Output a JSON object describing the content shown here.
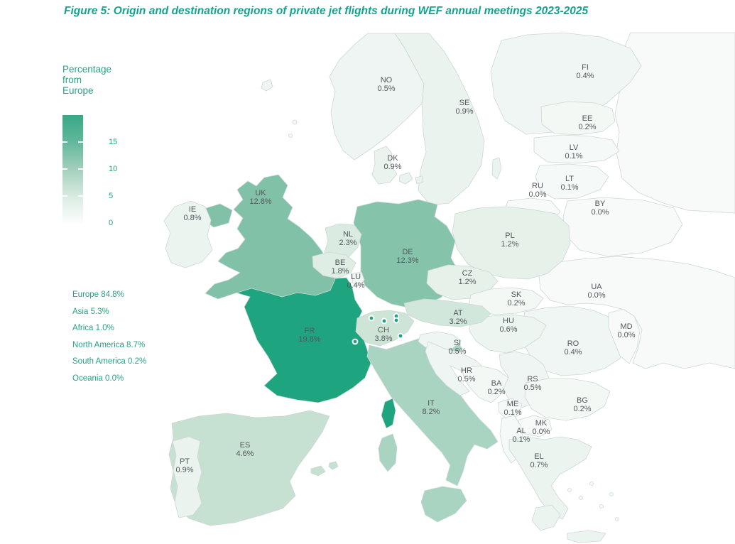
{
  "title": "Figure 5: Origin and destination regions of private jet flights during WEF annual meetings 2023-2025",
  "legend": {
    "title_line1": "Percentage from",
    "title_line2": "Europe",
    "tick_labels": [
      "15",
      "10",
      "5",
      "0"
    ]
  },
  "continent_stats": [
    {
      "label": "Europe",
      "value": "84.8%"
    },
    {
      "label": "Asia",
      "value": "5.3%"
    },
    {
      "label": "Africa",
      "value": "1.0%"
    },
    {
      "label": "North America",
      "value": "8.7%"
    },
    {
      "label": "South America",
      "value": "0.2%"
    },
    {
      "label": "Oceania",
      "value": "0.0%"
    }
  ],
  "colors": {
    "accent": "#14a38f",
    "stats_text": "#27a287",
    "country_label": "#54575c",
    "border": "#ccd8d4",
    "colormap_high": "#1ea47f",
    "colormap_low": "#ffffff",
    "airport_marker": "#1ea47f"
  },
  "chart_data": {
    "type": "heatmap",
    "subtype": "choropleth map of Europe",
    "title": "Figure 5: Origin and destination regions of private jet flights during WEF annual meetings 2023-2025",
    "legend_title": "Percentage from Europe",
    "unit": "percent of private jet flights originating from each country",
    "colorbar": {
      "tick_values": [
        0,
        5,
        10,
        15
      ],
      "range_min": 0,
      "range_max": 19.8,
      "low_color": "#ffffff",
      "high_color": "#1ea47f",
      "orientation": "vertical"
    },
    "continents": [
      {
        "name": "Europe",
        "value": 84.8
      },
      {
        "name": "Asia",
        "value": 5.3
      },
      {
        "name": "Africa",
        "value": 1.0
      },
      {
        "name": "North America",
        "value": 8.7
      },
      {
        "name": "South America",
        "value": 0.2
      },
      {
        "name": "Oceania",
        "value": 0.0
      }
    ],
    "countries": [
      {
        "code": "NO",
        "value": 0.5,
        "label": "0.5%",
        "fill": "#eef5f2"
      },
      {
        "code": "SE",
        "value": 0.9,
        "label": "0.9%",
        "fill": "#eaf3ee"
      },
      {
        "code": "FI",
        "value": 0.4,
        "label": "0.4%",
        "fill": "#f0f6f3"
      },
      {
        "code": "DK",
        "value": 0.9,
        "label": "0.9%",
        "fill": "#eaf3ee"
      },
      {
        "code": "EE",
        "value": 0.2,
        "label": "0.2%",
        "fill": "#f3f8f5"
      },
      {
        "code": "LV",
        "value": 0.1,
        "label": "0.1%",
        "fill": "#f5f9f7"
      },
      {
        "code": "LT",
        "value": 0.1,
        "label": "0.1%",
        "fill": "#f5f9f7"
      },
      {
        "code": "RU",
        "value": 0.0,
        "label": "0.0%",
        "fill": "#f7faf8"
      },
      {
        "code": "BY",
        "value": 0.0,
        "label": "0.0%",
        "fill": "#f7faf8"
      },
      {
        "code": "UK",
        "value": 12.8,
        "label": "12.8%",
        "fill": "#81c1a8"
      },
      {
        "code": "IE",
        "value": 0.8,
        "label": "0.8%",
        "fill": "#ebf4ef"
      },
      {
        "code": "NL",
        "value": 2.3,
        "label": "2.3%",
        "fill": "#daebe1"
      },
      {
        "code": "BE",
        "value": 1.8,
        "label": "1.8%",
        "fill": "#dfeee5"
      },
      {
        "code": "LU",
        "value": 0.4,
        "label": "0.4%",
        "fill": "#f0f6f3"
      },
      {
        "code": "DE",
        "value": 12.3,
        "label": "12.3%",
        "fill": "#86c3ab"
      },
      {
        "code": "PL",
        "value": 1.2,
        "label": "1.2%",
        "fill": "#e6f1ea"
      },
      {
        "code": "CZ",
        "value": 1.2,
        "label": "1.2%",
        "fill": "#e6f1ea"
      },
      {
        "code": "SK",
        "value": 0.2,
        "label": "0.2%",
        "fill": "#f3f8f5"
      },
      {
        "code": "UA",
        "value": 0.0,
        "label": "0.0%",
        "fill": "#f7faf8"
      },
      {
        "code": "AT",
        "value": 3.2,
        "label": "3.2%",
        "fill": "#d2e7db"
      },
      {
        "code": "HU",
        "value": 0.6,
        "label": "0.6%",
        "fill": "#edf5f1"
      },
      {
        "code": "MD",
        "value": 0.0,
        "label": "0.0%",
        "fill": "#f7faf8"
      },
      {
        "code": "RO",
        "value": 0.4,
        "label": "0.4%",
        "fill": "#f0f6f3"
      },
      {
        "code": "CH",
        "value": 3.8,
        "label": "3.8%",
        "fill": "#cde4d7"
      },
      {
        "code": "FR",
        "value": 19.8,
        "label": "19.8%",
        "fill": "#1ea47f"
      },
      {
        "code": "SI",
        "value": 0.5,
        "label": "0.5%",
        "fill": "#eef5f2"
      },
      {
        "code": "HR",
        "value": 0.5,
        "label": "0.5%",
        "fill": "#eef5f2"
      },
      {
        "code": "BA",
        "value": 0.2,
        "label": "0.2%",
        "fill": "#f3f8f5"
      },
      {
        "code": "RS",
        "value": 0.5,
        "label": "0.5%",
        "fill": "#eef5f2"
      },
      {
        "code": "ME",
        "value": 0.1,
        "label": "0.1%",
        "fill": "#f5f9f7"
      },
      {
        "code": "BG",
        "value": 0.2,
        "label": "0.2%",
        "fill": "#f3f8f5"
      },
      {
        "code": "MK",
        "value": 0.0,
        "label": "0.0%",
        "fill": "#f7faf8"
      },
      {
        "code": "AL",
        "value": 0.1,
        "label": "0.1%",
        "fill": "#f5f9f7"
      },
      {
        "code": "EL",
        "value": 0.7,
        "label": "0.7%",
        "fill": "#ecf4f0"
      },
      {
        "code": "IT",
        "value": 8.2,
        "label": "8.2%",
        "fill": "#a8d4c1"
      },
      {
        "code": "ES",
        "value": 4.6,
        "label": "4.6%",
        "fill": "#c6e1d2"
      },
      {
        "code": "PT",
        "value": 0.9,
        "label": "0.9%",
        "fill": "#eaf3ee"
      }
    ]
  }
}
